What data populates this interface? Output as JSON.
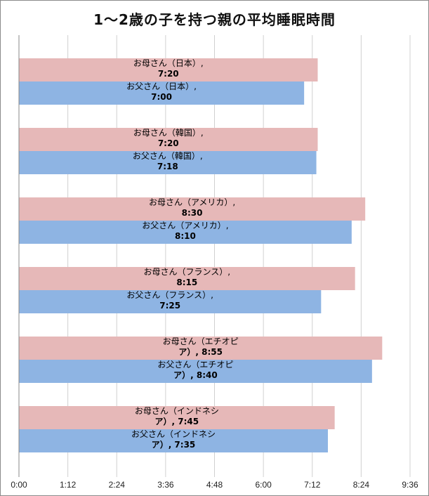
{
  "chart_data": {
    "type": "bar",
    "orientation": "horizontal",
    "title": "1～2歳の子を持つ親の平均睡眠時間",
    "xlabel": "",
    "ylabel": "",
    "x_unit": "hours:minutes",
    "xlim": [
      "0:00",
      "9:36"
    ],
    "x_ticks": [
      "0:00",
      "1:12",
      "2:24",
      "3:36",
      "4:48",
      "6:00",
      "7:12",
      "8:24",
      "9:36"
    ],
    "grid": true,
    "legend": "none",
    "colors": {
      "mother": "#e6b8b8",
      "father": "#8eb4e3",
      "grid": "#d0d0d0"
    },
    "groups": [
      {
        "country": "日本",
        "bars": [
          {
            "role": "mother",
            "label_lines": [
              "お母さん（日本）,",
              "7:20"
            ],
            "value": "7:20"
          },
          {
            "role": "father",
            "label_lines": [
              "お父さん（日本）,",
              "7:00"
            ],
            "value": "7:00"
          }
        ]
      },
      {
        "country": "韓国",
        "bars": [
          {
            "role": "mother",
            "label_lines": [
              "お母さん（韓国）,",
              "7:20"
            ],
            "value": "7:20"
          },
          {
            "role": "father",
            "label_lines": [
              "お父さん（韓国）,",
              "7:18"
            ],
            "value": "7:18"
          }
        ]
      },
      {
        "country": "アメリカ",
        "bars": [
          {
            "role": "mother",
            "label_lines": [
              "お母さん（アメリカ）,",
              "8:30"
            ],
            "value": "8:30"
          },
          {
            "role": "father",
            "label_lines": [
              "お父さん（アメリカ）,",
              "8:10"
            ],
            "value": "8:10"
          }
        ]
      },
      {
        "country": "フランス",
        "bars": [
          {
            "role": "mother",
            "label_lines": [
              "お母さん（フランス）,",
              "8:15"
            ],
            "value": "8:15"
          },
          {
            "role": "father",
            "label_lines": [
              "お父さん（フランス）,",
              "7:25"
            ],
            "value": "7:25"
          }
        ]
      },
      {
        "country": "エチオピア",
        "bars": [
          {
            "role": "mother",
            "label_lines": [
              "お母さん（エチオピ",
              "ア）, 8:55"
            ],
            "value": "8:55"
          },
          {
            "role": "father",
            "label_lines": [
              "お父さん（エチオピ",
              "ア）, 8:40"
            ],
            "value": "8:40"
          }
        ]
      },
      {
        "country": "インドネシア",
        "bars": [
          {
            "role": "mother",
            "label_lines": [
              "お母さん（インドネシ",
              "ア）, 7:45"
            ],
            "value": "7:45"
          },
          {
            "role": "father",
            "label_lines": [
              "お父さん（インドネシ",
              "ア）, 7:35"
            ],
            "value": "7:35"
          }
        ]
      }
    ]
  }
}
